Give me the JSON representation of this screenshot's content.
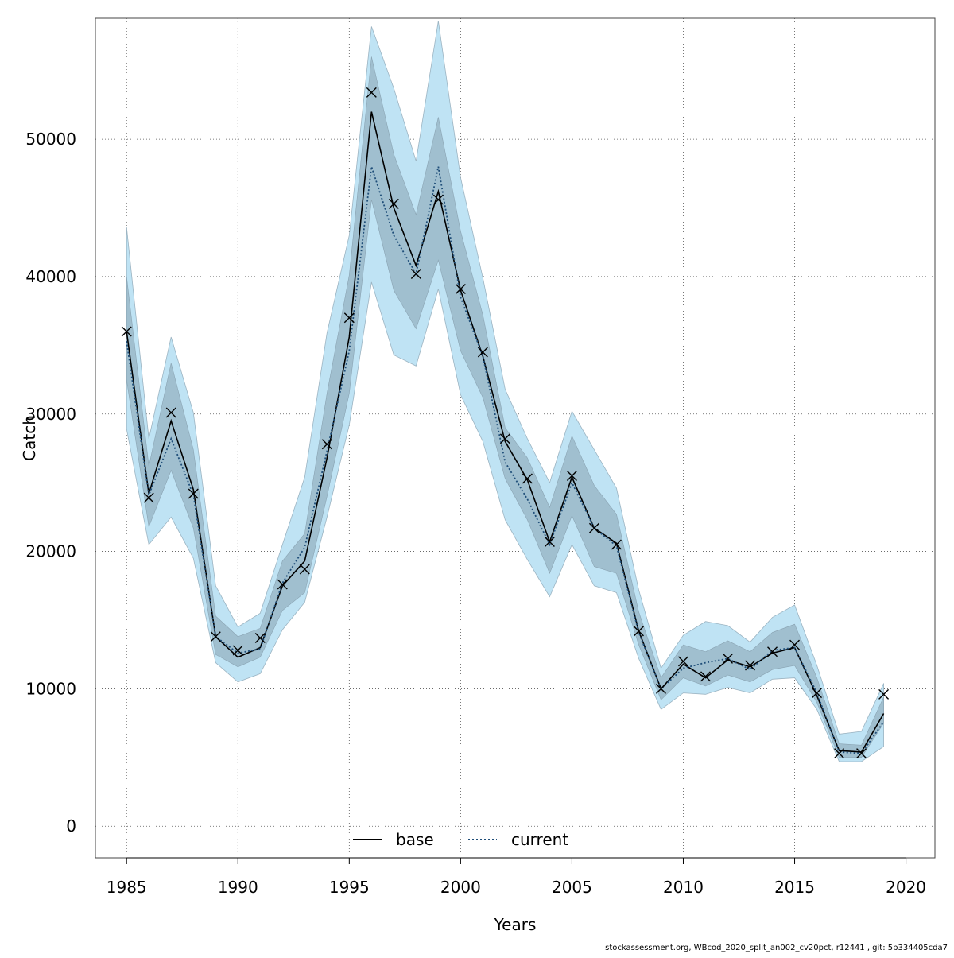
{
  "chart_data": {
    "type": "line",
    "title": "",
    "xlabel": "Years",
    "ylabel": "Catch",
    "xlim": [
      1983.6,
      2021.3
    ],
    "ylim": [
      -2300,
      58800
    ],
    "x_ticks": [
      1985,
      1990,
      1995,
      2000,
      2005,
      2010,
      2015,
      2020
    ],
    "y_ticks": [
      0,
      10000,
      20000,
      30000,
      40000,
      50000
    ],
    "grid": true,
    "legend_position": "bottom-center",
    "x": [
      1985,
      1986,
      1987,
      1988,
      1989,
      1990,
      1991,
      1992,
      1993,
      1994,
      1995,
      1996,
      1997,
      1998,
      1999,
      2000,
      2001,
      2002,
      2003,
      2004,
      2005,
      2006,
      2007,
      2008,
      2009,
      2010,
      2011,
      2012,
      2013,
      2014,
      2015,
      2016,
      2017,
      2018,
      2019
    ],
    "observed": [
      36000,
      23900,
      30100,
      24200,
      13800,
      12800,
      13700,
      17600,
      18700,
      27800,
      37000,
      53400,
      45300,
      40200,
      45600,
      39100,
      34500,
      28200,
      25300,
      20700,
      25500,
      21700,
      20500,
      14200,
      10000,
      12000,
      10900,
      12200,
      11700,
      12700,
      13200,
      9700,
      5300,
      5300,
      9600
    ],
    "series": [
      {
        "name": "base",
        "line_style": "solid",
        "color": "#000000",
        "values": [
          36000,
          24200,
          29500,
          24500,
          13800,
          12300,
          13000,
          17500,
          19300,
          26800,
          35600,
          52000,
          45000,
          40800,
          46200,
          39000,
          34200,
          28000,
          25200,
          20700,
          25400,
          21700,
          20600,
          14200,
          10000,
          11800,
          10800,
          12100,
          11600,
          12600,
          13000,
          9500,
          5500,
          5400,
          8200
        ],
        "ci95_low": [
          28900,
          20500,
          22500,
          19500,
          11900,
          10500,
          11100,
          14300,
          16300,
          22500,
          29200,
          39600,
          34300,
          33500,
          39100,
          31400,
          28000,
          22300,
          19400,
          16700,
          20500,
          17500,
          17000,
          12200,
          8500,
          9700,
          9600,
          10100,
          9700,
          10700,
          10800,
          8500,
          4700,
          4700,
          5800
        ],
        "ci95_high": [
          43600,
          28200,
          35600,
          30100,
          17500,
          14500,
          15500,
          20500,
          25400,
          35900,
          43000,
          58200,
          53700,
          48400,
          58600,
          47200,
          39900,
          31800,
          28200,
          25000,
          30200,
          27400,
          24600,
          17200,
          11500,
          13900,
          14900,
          14600,
          13400,
          15200,
          16100,
          11700,
          6700,
          6900,
          10400
        ],
        "ci50_low": [
          32500,
          21800,
          25900,
          21700,
          12500,
          11600,
          12300,
          15700,
          17000,
          24000,
          31500,
          45600,
          39000,
          36200,
          41200,
          34600,
          31200,
          25300,
          22300,
          18400,
          22600,
          18900,
          18400,
          13200,
          9200,
          10800,
          10200,
          11000,
          10500,
          11400,
          11700,
          9000,
          5000,
          5000,
          7500
        ],
        "ci50_high": [
          40000,
          26200,
          33700,
          27400,
          15300,
          13800,
          14400,
          19300,
          21300,
          31500,
          40100,
          56000,
          48900,
          44500,
          51600,
          43300,
          37200,
          29000,
          26800,
          23200,
          28400,
          24800,
          22700,
          15600,
          10800,
          13200,
          12700,
          13500,
          12700,
          14100,
          14700,
          10800,
          6000,
          5900,
          9400
        ]
      },
      {
        "name": "current",
        "line_style": "dotted",
        "color": "#1f4e79",
        "values": [
          35300,
          24100,
          28200,
          24100,
          13800,
          12600,
          12900,
          17700,
          20300,
          27300,
          34600,
          48000,
          43000,
          40200,
          48000,
          38500,
          34200,
          26500,
          23800,
          20500,
          25000,
          21700,
          20400,
          14100,
          10000,
          11500,
          11900,
          12200,
          11400,
          12800,
          13000,
          9700,
          5400,
          5300,
          7600
        ]
      }
    ],
    "colors": {
      "outer_band": "#bfe3f4",
      "inner_band": "#9ab8c8",
      "base": "#000000",
      "current": "#1f4e79",
      "grid": "#555555"
    }
  },
  "footer_text": "stockassessment.org, WBcod_2020_split_an002_cv20pct, r12441 , git: 5b334405cda7"
}
